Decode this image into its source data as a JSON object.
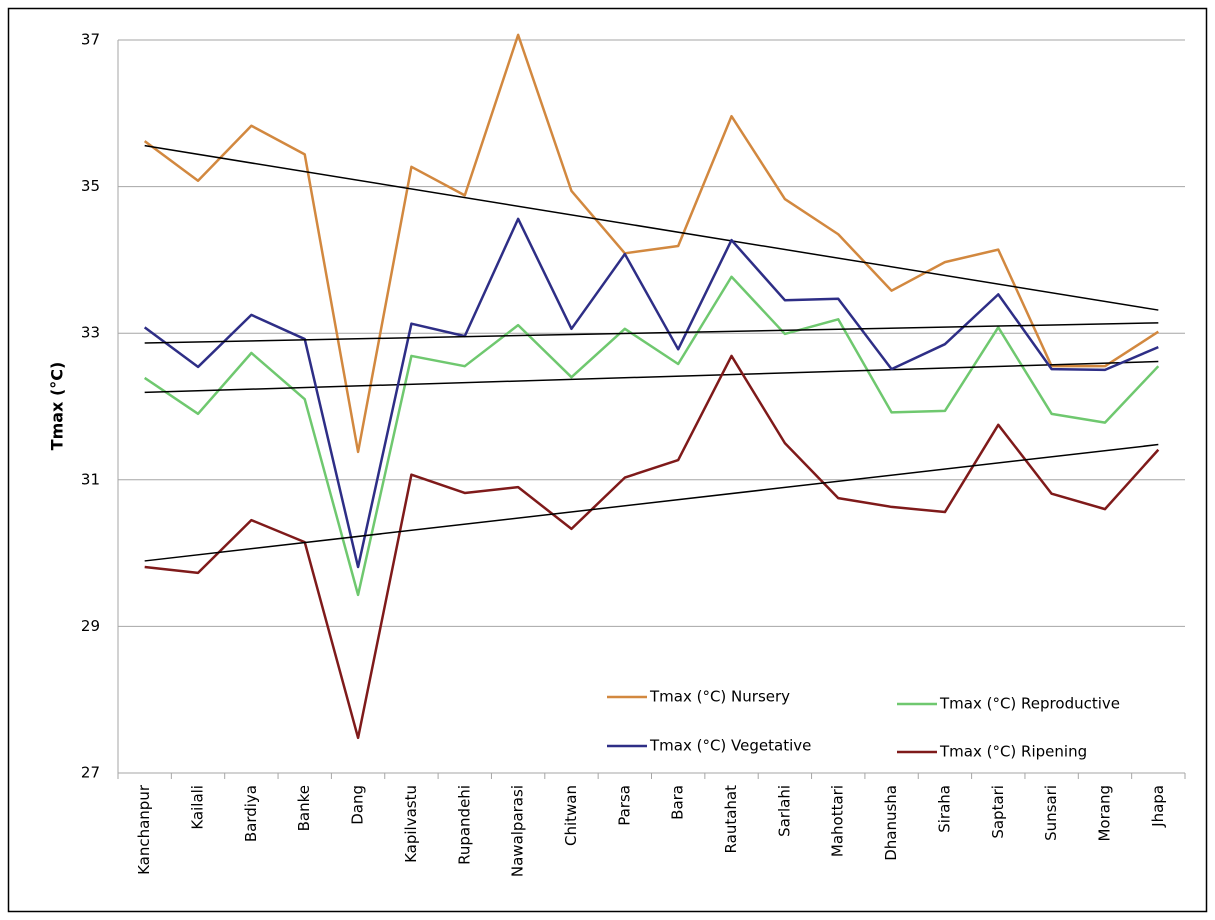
{
  "chart_data": {
    "type": "line",
    "y_label": "Tmax (°C)",
    "categories": [
      "Kanchanpur",
      "Kailali",
      "Bardiya",
      "Banke",
      "Dang",
      "Kapilvastu",
      "Rupandehi",
      "Nawalparasi",
      "Chitwan",
      "Parsa",
      "Bara",
      "Rautahat",
      "Sarlahi",
      "Mahottari",
      "Dhanusha",
      "Siraha",
      "Saptari",
      "Sunsari",
      "Morang",
      "Jhapa"
    ],
    "series": [
      {
        "name": "Tmax (°C) Nursery",
        "color": "#d2883f",
        "values": [
          35.62,
          35.08,
          35.83,
          35.44,
          31.38,
          35.27,
          34.88,
          37.07,
          34.94,
          34.09,
          34.19,
          35.96,
          34.83,
          34.35,
          33.58,
          33.97,
          34.14,
          32.55,
          32.55,
          33.02
        ]
      },
      {
        "name": "Tmax (°C) Reproductive",
        "color": "#6fc86f",
        "values": [
          32.39,
          31.9,
          32.73,
          32.1,
          29.43,
          32.69,
          32.55,
          33.11,
          32.4,
          33.06,
          32.58,
          33.77,
          32.99,
          33.19,
          31.92,
          31.94,
          33.08,
          31.9,
          31.78,
          32.55
        ]
      },
      {
        "name": "Tmax (°C) Vegetative",
        "color": "#2e2e86",
        "values": [
          33.08,
          32.54,
          33.25,
          32.92,
          29.81,
          33.13,
          32.96,
          34.56,
          33.06,
          34.08,
          32.78,
          34.27,
          33.45,
          33.47,
          32.51,
          32.85,
          33.53,
          32.51,
          32.5,
          32.81
        ]
      },
      {
        "name": "Tmax (°C) Ripening",
        "color": "#7f1a1a",
        "values": [
          29.81,
          29.73,
          30.45,
          30.15,
          27.48,
          31.07,
          30.82,
          30.9,
          30.33,
          31.03,
          31.27,
          32.69,
          31.5,
          30.75,
          30.63,
          30.56,
          31.75,
          30.81,
          30.6,
          31.41
        ]
      }
    ],
    "ylim": [
      27,
      37
    ],
    "yticks": [
      27,
      29,
      31,
      33,
      35,
      37
    ],
    "grid": true,
    "trendline": true,
    "trendline_color": "#000000",
    "legend": "lower right"
  }
}
